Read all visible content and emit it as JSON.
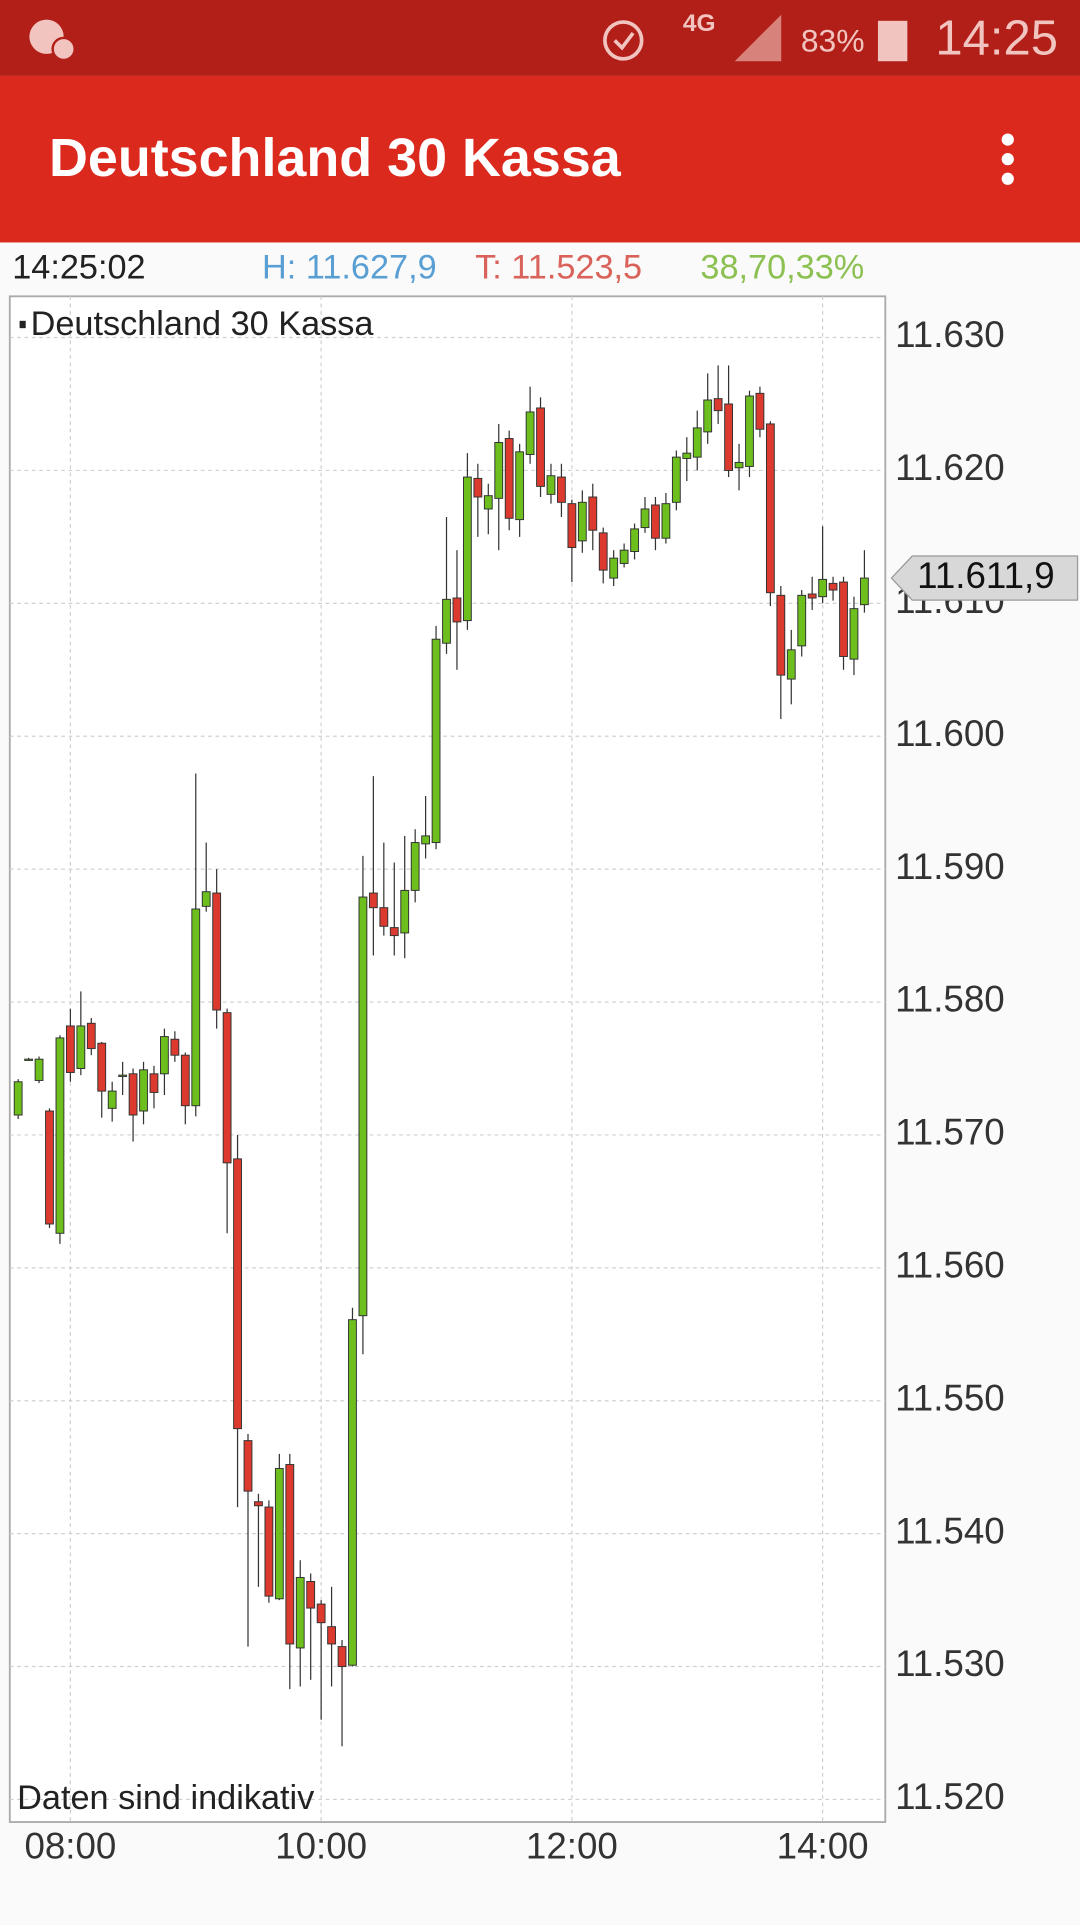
{
  "status_bar": {
    "network": "4G",
    "battery": "83%",
    "time": "14:25"
  },
  "header": {
    "title": "Deutschland 30 Kassa"
  },
  "info": {
    "time": "14:25:02",
    "high": "H: 11.627,9",
    "low": "T: 11.523,5",
    "change": "38,70,33%"
  },
  "chart_data": {
    "type": "candlestick",
    "title": "Deutschland 30 Kassa",
    "note": "Daten sind indikativ",
    "x": [
      "07:35",
      "07:40",
      "07:45",
      "07:50",
      "07:55",
      "08:00",
      "08:05",
      "08:10",
      "08:15",
      "08:20",
      "08:25",
      "08:30",
      "08:35",
      "08:40",
      "08:45",
      "08:50",
      "08:55",
      "09:00",
      "09:05",
      "09:10",
      "09:15",
      "09:20",
      "09:25",
      "09:30",
      "09:35",
      "09:40",
      "09:45",
      "09:50",
      "09:55",
      "10:00",
      "10:05",
      "10:10",
      "10:15",
      "10:20",
      "10:25",
      "10:30",
      "10:35",
      "10:40",
      "10:45",
      "10:50",
      "10:55",
      "11:00",
      "11:05",
      "11:10",
      "11:15",
      "11:20",
      "11:25",
      "11:30",
      "11:35",
      "11:40",
      "11:45",
      "11:50",
      "11:55",
      "12:00",
      "12:05",
      "12:10",
      "12:15",
      "12:20",
      "12:25",
      "12:30",
      "12:35",
      "12:40",
      "12:45",
      "12:50",
      "12:55",
      "13:00",
      "13:05",
      "13:10",
      "13:15",
      "13:20",
      "13:25",
      "13:30",
      "13:35",
      "13:40",
      "13:45",
      "13:50",
      "13:55",
      "14:00",
      "14:05",
      "14:10",
      "14:15",
      "14:20"
    ],
    "open": [
      11571.5,
      11575.7,
      11574.1,
      11571.8,
      11562.6,
      11578.2,
      11575,
      11578.4,
      11576.9,
      11572.0,
      11574.4,
      11574.6,
      11571.8,
      11574.6,
      11574.6,
      11577.2,
      11576.0,
      11572.2,
      11587.2,
      11588.2,
      11579.2,
      11568.2,
      11547,
      11542.4,
      11542,
      11535.1,
      11545.2,
      11531.4,
      11536.4,
      11534.7,
      11533,
      11531.5,
      11530.1,
      11556.4,
      11588.2,
      11587.1,
      11585.6,
      11585.2,
      11588.4,
      11591.9,
      11592,
      11607,
      11610.4,
      11608.7,
      11619.4,
      11617.1,
      11617.9,
      11622.4,
      11616.3,
      11621.2,
      11624.7,
      11618.2,
      11619.5,
      11617.5,
      11614.7,
      11618,
      11615.3,
      11611.9,
      11613,
      11613.9,
      11615.7,
      11617.4,
      11614.9,
      11617.6,
      11620.9,
      11621,
      11622.9,
      11625.4,
      11625,
      11620.2,
      11620.3,
      11625.8,
      11623.5,
      11610.6,
      11604.3,
      11606.8,
      11610.7,
      11610.5,
      11611.5,
      11611.6,
      11605.8,
      11609.9
    ],
    "high": [
      11574.2,
      11575.8,
      11575.9,
      11572,
      11577.5,
      11579.5,
      11580.8,
      11578.8,
      11577,
      11574,
      11575.5,
      11575,
      11575.5,
      11575.2,
      11578,
      11577.8,
      11576.2,
      11597.2,
      11592.0,
      11590,
      11579.5,
      11570,
      11547.5,
      11543,
      11542.5,
      11546,
      11546,
      11538,
      11537,
      11535,
      11536,
      11532,
      11557,
      11591,
      11597,
      11592,
      11590.5,
      11592.5,
      11593,
      11595.5,
      11608.3,
      11616.5,
      11614,
      11621.3,
      11620.5,
      11619,
      11623.5,
      11623,
      11622,
      11626.3,
      11625.5,
      11620.5,
      11620.5,
      11617.8,
      11618.5,
      11619,
      11615.7,
      11614,
      11614.5,
      11616,
      11618,
      11618,
      11618.3,
      11621.5,
      11622.5,
      11624.5,
      11627.3,
      11627.9,
      11627.9,
      11622,
      11626,
      11626.3,
      11623.7,
      11611.3,
      11608,
      11611,
      11612,
      11615.8,
      11612,
      11612,
      11610.5,
      11614
    ],
    "low": [
      11571.2,
      11575.6,
      11573.9,
      11563,
      11561.8,
      11574,
      11574.5,
      11576,
      11571.3,
      11571,
      11573,
      11569.5,
      11570.8,
      11572,
      11573,
      11575.5,
      11570.8,
      11571.4,
      11586.8,
      11578,
      11562.6,
      11542,
      11531.5,
      11536,
      11534.8,
      11535,
      11528.3,
      11528.5,
      11529,
      11526,
      11528.5,
      11524,
      11530,
      11553.5,
      11583.5,
      11585,
      11583.5,
      11583.3,
      11587.5,
      11590.8,
      11591.5,
      11606.2,
      11605,
      11608,
      11615,
      11615.2,
      11614,
      11615.5,
      11615,
      11620.5,
      11618,
      11617.5,
      11616.5,
      11611.6,
      11613.8,
      11614,
      11611.5,
      11611.3,
      11612.7,
      11613.3,
      11615.3,
      11614,
      11614.5,
      11617,
      11619.2,
      11620,
      11622,
      11623.5,
      11619.5,
      11618.5,
      11619.5,
      11622.5,
      11609.8,
      11601.3,
      11602.4,
      11606,
      11609.5,
      11610,
      11610.2,
      11605,
      11604.6,
      11609.3
    ],
    "close": [
      11574.0,
      11575.7,
      11575.7,
      11563.3,
      11577.3,
      11574.7,
      11578.2,
      11576.5,
      11573.3,
      11573.3,
      11574.5,
      11571.5,
      11574.9,
      11573.2,
      11577.4,
      11576.0,
      11572.2,
      11587.0,
      11588.3,
      11579.4,
      11567.9,
      11547.9,
      11543.2,
      11542.1,
      11535.3,
      11544.9,
      11531.7,
      11536.7,
      11534.4,
      11533.3,
      11531.7,
      11530,
      11556.1,
      11587.9,
      11587.1,
      11585.7,
      11585,
      11588.4,
      11592,
      11592.5,
      11607.3,
      11610.3,
      11608.6,
      11619.5,
      11618,
      11618.1,
      11622.1,
      11616.4,
      11621.4,
      11624.4,
      11618.8,
      11619.6,
      11617.6,
      11614.2,
      11617.6,
      11615.5,
      11612.5,
      11613.4,
      11614,
      11615.6,
      11617.1,
      11614.9,
      11617.5,
      11621,
      11621.3,
      11623.2,
      11625.3,
      11624.5,
      11620,
      11620.6,
      11625.6,
      11623.1,
      11610.8,
      11604.6,
      11606.5,
      11610.6,
      11610.4,
      11611.8,
      11611.0,
      11606,
      11609.6,
      11611.9
    ],
    "up_color": "#6cbf1c",
    "down_color": "#dc3a2e",
    "xlim": [
      "07:31",
      "14:30"
    ],
    "xticks": [
      "08:00",
      "10:00",
      "12:00",
      "14:00"
    ],
    "ylim": [
      11518.3,
      11633.1
    ],
    "yticks": [
      {
        "value": 11520,
        "label": "11.520"
      },
      {
        "value": 11530,
        "label": "11.530"
      },
      {
        "value": 11540,
        "label": "11.540"
      },
      {
        "value": 11550,
        "label": "11.550"
      },
      {
        "value": 11560,
        "label": "11.560"
      },
      {
        "value": 11570,
        "label": "11.570"
      },
      {
        "value": 11580,
        "label": "11.580"
      },
      {
        "value": 11590,
        "label": "11.590"
      },
      {
        "value": 11600,
        "label": "11.600"
      },
      {
        "value": 11610,
        "label": "11.610"
      },
      {
        "value": 11620,
        "label": "11.620"
      },
      {
        "value": 11630,
        "label": "11.630"
      }
    ],
    "grid": true,
    "last_price": {
      "value": 11611.9,
      "label": "11.611,9"
    }
  }
}
